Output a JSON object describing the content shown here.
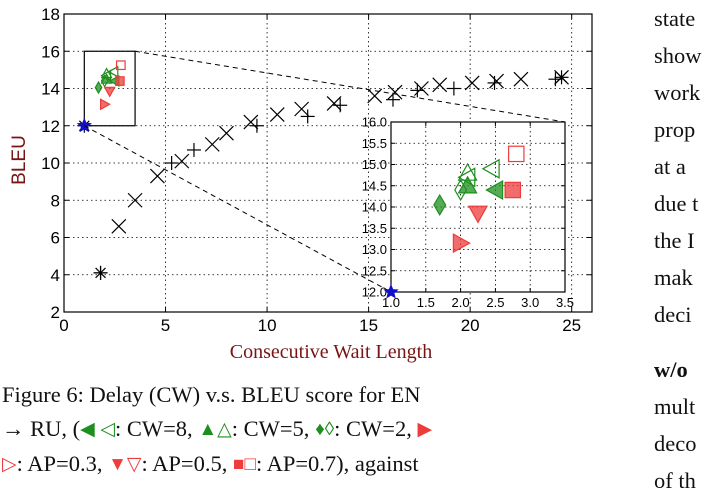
{
  "figure": {
    "ylabel": "BLEU",
    "xlabel": "Consecutive Wait Length",
    "colors": {
      "ylabel": "#7a1414",
      "xlabel": "#7a1414",
      "cw_markers": "#1e8f1e",
      "ap_markers": "#ee3b3b",
      "baseline": "#000000",
      "star": "#1010cc"
    },
    "chart_data": [
      {
        "type": "scatter",
        "role": "main",
        "xlim": [
          0,
          26
        ],
        "ylim": [
          2,
          18
        ],
        "xticks": [
          "0",
          "5",
          "10",
          "15",
          "20",
          "25"
        ],
        "yticks": [
          "2",
          "4",
          "6",
          "8",
          "10",
          "12",
          "14",
          "16",
          "18"
        ],
        "grid": true,
        "series": [
          {
            "marker": "x",
            "x": [
              2.7,
              3.5,
              4.6,
              5.8,
              7.3,
              8.0,
              9.2,
              10.5,
              11.7,
              13.3,
              15.3,
              16.3,
              17.6,
              18.5,
              20.1,
              21.3,
              22.5,
              24.5
            ],
            "y": [
              6.6,
              8.0,
              9.3,
              10.1,
              11.0,
              11.6,
              12.2,
              12.6,
              12.9,
              13.2,
              13.6,
              13.8,
              14.0,
              14.2,
              14.3,
              14.4,
              14.5,
              14.6
            ]
          },
          {
            "marker": "+",
            "x": [
              1.8,
              5.3,
              6.4,
              9.5,
              12.0,
              13.6,
              16.2,
              17.4,
              19.2,
              21.2,
              24.2
            ],
            "y": [
              4.1,
              10.0,
              10.7,
              12.0,
              12.5,
              13.1,
              13.4,
              13.9,
              14.0,
              14.3,
              14.5
            ]
          },
          {
            "marker": "*",
            "x": [
              1.0,
              1.8,
              24.5
            ],
            "y": [
              12.0,
              4.1,
              14.6
            ]
          }
        ],
        "zoom_box": {
          "xlim": [
            1.0,
            3.5
          ],
          "ylim": [
            12.0,
            16.0
          ]
        }
      },
      {
        "type": "scatter",
        "role": "inset",
        "xlim": [
          1.0,
          3.5
        ],
        "ylim": [
          12.0,
          16.0
        ],
        "xticks": [
          "1.0",
          "1.5",
          "2.0",
          "2.5",
          "3.0",
          "3.5"
        ],
        "yticks": [
          "12.0",
          "12.5",
          "13.0",
          "13.5",
          "14.0",
          "14.5",
          "15.0",
          "15.5",
          "16.0"
        ],
        "grid": true,
        "series": [
          {
            "marker": "triangle-left",
            "fill": "solid",
            "color": "cw",
            "x": [
              2.5
            ],
            "y": [
              14.4
            ]
          },
          {
            "marker": "triangle-left",
            "fill": "open",
            "color": "cw",
            "x": [
              2.1,
              2.45
            ],
            "y": [
              14.7,
              14.9
            ]
          },
          {
            "marker": "triangle-up",
            "fill": "solid",
            "color": "cw",
            "x": [
              2.1
            ],
            "y": [
              14.5
            ]
          },
          {
            "marker": "triangle-up",
            "fill": "open",
            "color": "cw",
            "x": [
              2.1
            ],
            "y": [
              14.8
            ]
          },
          {
            "marker": "diamond",
            "fill": "solid",
            "color": "cw",
            "x": [
              1.7
            ],
            "y": [
              14.05
            ]
          },
          {
            "marker": "diamond",
            "fill": "open",
            "color": "cw",
            "x": [
              2.0
            ],
            "y": [
              14.4
            ]
          },
          {
            "marker": "triangle-right",
            "fill": "solid",
            "color": "ap",
            "x": [
              2.0
            ],
            "y": [
              13.15
            ]
          },
          {
            "marker": "triangle-down",
            "fill": "solid",
            "color": "ap",
            "x": [
              2.25
            ],
            "y": [
              13.85
            ]
          },
          {
            "marker": "square",
            "fill": "solid",
            "color": "ap",
            "x": [
              2.75
            ],
            "y": [
              14.4
            ]
          },
          {
            "marker": "square",
            "fill": "open",
            "color": "ap",
            "x": [
              2.8
            ],
            "y": [
              15.25
            ]
          }
        ],
        "star": {
          "x": 1.0,
          "y": 12.0
        }
      }
    ]
  },
  "caption": {
    "line1": "Figure 6:   Delay (CW) v.s.  BLEU score for EN",
    "line2_start": "→ RU, (",
    "cw8": ": CW=8, ",
    "cw5": ": CW=5, ",
    "cw2": ": CW=2, ",
    "ap03": ":  AP=0.3, ",
    "ap05": ":  AP=0.5, ",
    "ap07": ":  AP=0.7), against"
  },
  "right_column": {
    "lines": [
      "state",
      "show",
      "work",
      "prop",
      "at a",
      "due t",
      "the I",
      "mak",
      "deci"
    ],
    "bold_line": "w/o",
    "after_lines": [
      "mult",
      "deco",
      "of th"
    ]
  }
}
